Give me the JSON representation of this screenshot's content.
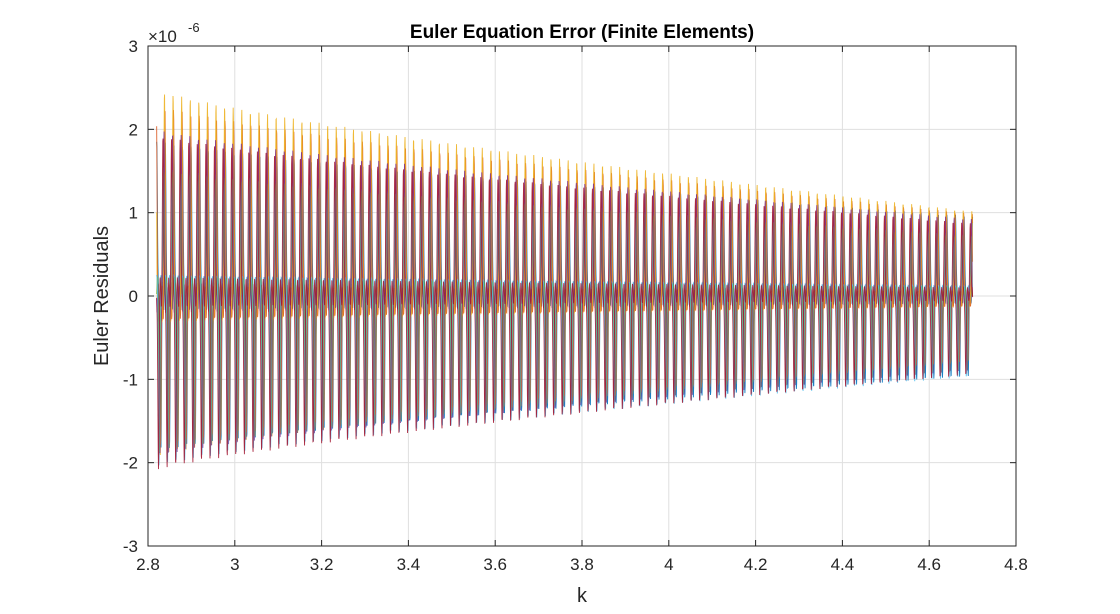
{
  "chart_data": {
    "type": "line",
    "title": "Euler Equation Error (Finite Elements)",
    "xlabel": "k",
    "ylabel": "Euler Residuals",
    "y_exponent_label": "×10",
    "y_exponent": "-6",
    "xlim": [
      2.8,
      4.8
    ],
    "ylim": [
      -3,
      3
    ],
    "x_ticks": [
      2.8,
      3,
      3.2,
      3.4,
      3.6,
      3.8,
      4,
      4.2,
      4.4,
      4.6,
      4.8
    ],
    "x_tick_labels": [
      "2.8",
      "3",
      "3.2",
      "3.4",
      "3.6",
      "3.8",
      "4",
      "4.2",
      "4.4",
      "4.6",
      "4.8"
    ],
    "y_ticks": [
      -3,
      -2,
      -1,
      0,
      1,
      2,
      3
    ],
    "y_tick_labels": [
      "-3",
      "-2",
      "-1",
      "0",
      "1",
      "2",
      "3"
    ],
    "grid": true,
    "legend": "none",
    "x_range_of_data": [
      2.82,
      4.7
    ],
    "num_oscillations": 95,
    "series": [
      {
        "color": "#0072BD",
        "envelope_start": 1.85,
        "envelope_end": 0.95,
        "phase": 0.0
      },
      {
        "color": "#D95319",
        "envelope_start": 2.05,
        "envelope_end": 0.88,
        "phase": 0.25
      },
      {
        "color": "#EDB120",
        "envelope_start": 2.2,
        "envelope_end": 0.9,
        "phase": 0.55
      },
      {
        "color": "#7E2F8E",
        "envelope_start": 1.95,
        "envelope_end": 0.9,
        "phase": 0.85
      },
      {
        "color": "#77AC30",
        "envelope_start": 1.7,
        "envelope_end": 0.8,
        "phase": 1.15
      },
      {
        "color": "#4DBEEE",
        "envelope_start": 1.8,
        "envelope_end": 0.85,
        "phase": 1.45
      },
      {
        "color": "#A2142F",
        "envelope_start": 2.0,
        "envelope_end": 0.9,
        "phase": 1.75
      }
    ]
  }
}
